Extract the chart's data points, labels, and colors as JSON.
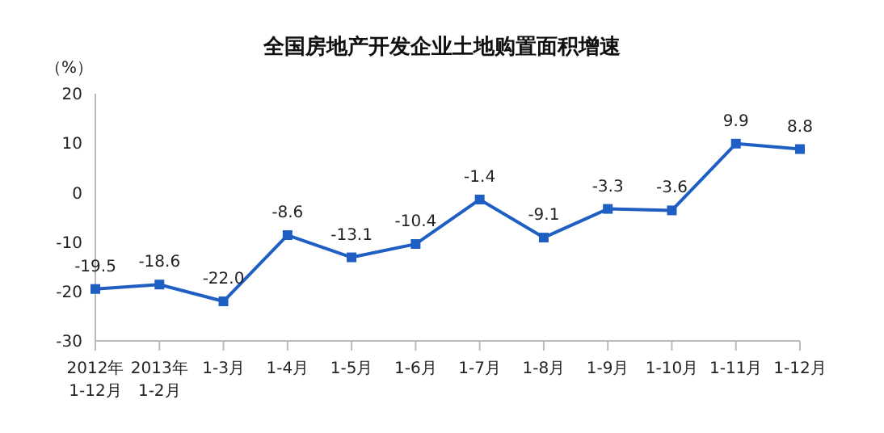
{
  "chart_data": {
    "type": "line",
    "title": "全国房地产开发企业土地购置面积增速",
    "ylabel": "（%）",
    "categories": [
      "2012年\n1-12月",
      "2013年\n1-2月",
      "1-3月",
      "1-4月",
      "1-5月",
      "1-6月",
      "1-7月",
      "1-8月",
      "1-9月",
      "1-10月",
      "1-11月",
      "1-12月"
    ],
    "series": [
      {
        "color": "#1f5fc4",
        "values": [
          -19.5,
          -18.6,
          -22.0,
          -8.6,
          -13.1,
          -10.4,
          -1.4,
          -9.1,
          -3.3,
          -3.6,
          9.9,
          8.8
        ],
        "value_labels": [
          "-19.5",
          "-18.6",
          "-22.0",
          "-8.6",
          "-13.1",
          "-10.4",
          "-1.4",
          "-9.1",
          "-3.3",
          "-3.6",
          "9.9",
          "8.8"
        ]
      }
    ],
    "ylim": [
      -30,
      20
    ],
    "yticks": [
      -30,
      -20,
      -10,
      0,
      10,
      20
    ],
    "grid": false,
    "legend": false,
    "marker": "square",
    "line_style": "solid"
  }
}
